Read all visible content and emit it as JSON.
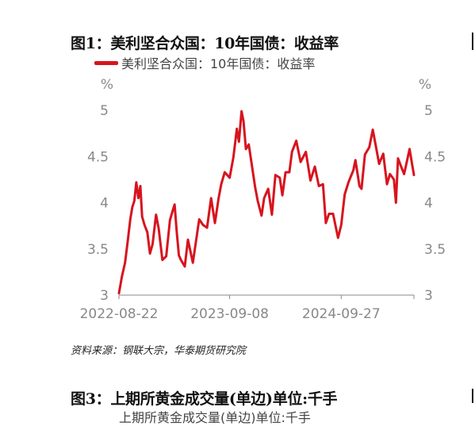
{
  "figure1": {
    "title": "图1：美利坚合众国：10年国债：收益率",
    "source": "资料来源：钢联大宗，华泰期货研究院"
  },
  "figure3": {
    "title": "图3：上期所黄金成交量(单边)单位:千手",
    "partial_legend": "上期所黄金成交量(单边)单位:千手"
  },
  "colors": {
    "series": "#d7141e",
    "axis": "#888888",
    "text": "#111111"
  },
  "chart_data": {
    "type": "line",
    "title": "图1：美利坚合众国：10年国债：收益率",
    "ylabel_left": "%",
    "ylabel_right": "%",
    "ylim": [
      3,
      5
    ],
    "yticks": [
      3,
      3.5,
      4,
      4.5,
      5
    ],
    "ytick_labels": [
      "3",
      "3.5",
      "4",
      "4.5",
      "5"
    ],
    "xlim": [
      "2022-08-22",
      "2025-06-05"
    ],
    "xticks": [
      "2022-08-22",
      "2023-09-08",
      "2024-09-27"
    ],
    "legend": "top-left",
    "grid": false,
    "series": [
      {
        "name": "美利坚合众国：10年国债：收益率",
        "x": [
          "2022-08-22",
          "2022-09-01",
          "2022-09-12",
          "2022-09-22",
          "2022-09-30",
          "2022-10-07",
          "2022-10-14",
          "2022-10-21",
          "2022-10-28",
          "2022-11-04",
          "2022-11-10",
          "2022-11-18",
          "2022-11-28",
          "2022-12-07",
          "2022-12-16",
          "2022-12-28",
          "2023-01-06",
          "2023-01-19",
          "2023-02-01",
          "2023-02-14",
          "2023-02-24",
          "2023-03-02",
          "2023-03-09",
          "2023-03-17",
          "2023-03-24",
          "2023-04-06",
          "2023-04-17",
          "2023-05-04",
          "2023-05-18",
          "2023-05-26",
          "2023-06-08",
          "2023-06-22",
          "2023-07-06",
          "2023-07-19",
          "2023-08-01",
          "2023-08-10",
          "2023-08-22",
          "2023-09-08",
          "2023-09-21",
          "2023-10-03",
          "2023-10-10",
          "2023-10-19",
          "2023-10-26",
          "2023-11-03",
          "2023-11-13",
          "2023-11-24",
          "2023-12-05",
          "2023-12-14",
          "2023-12-27",
          "2024-01-05",
          "2024-01-19",
          "2024-02-01",
          "2024-02-13",
          "2024-02-28",
          "2024-03-08",
          "2024-03-19",
          "2024-04-01",
          "2024-04-10",
          "2024-04-25",
          "2024-05-10",
          "2024-05-28",
          "2024-06-13",
          "2024-06-28",
          "2024-07-12",
          "2024-07-26",
          "2024-08-05",
          "2024-08-16",
          "2024-08-30",
          "2024-09-16",
          "2024-09-27",
          "2024-10-09",
          "2024-10-22",
          "2024-10-31",
          "2024-11-08",
          "2024-11-15",
          "2024-11-29",
          "2024-12-06",
          "2024-12-18",
          "2025-01-02",
          "2025-01-14",
          "2025-01-24",
          "2025-02-05",
          "2025-02-19",
          "2025-03-04",
          "2025-03-14",
          "2025-03-28",
          "2025-04-04",
          "2025-04-11",
          "2025-04-23",
          "2025-05-02",
          "2025-05-21",
          "2025-05-30",
          "2025-06-05"
        ],
        "values": [
          3.02,
          3.2,
          3.35,
          3.6,
          3.82,
          3.95,
          4.02,
          4.22,
          4.05,
          4.18,
          3.85,
          3.76,
          3.68,
          3.45,
          3.55,
          3.87,
          3.72,
          3.38,
          3.42,
          3.81,
          3.92,
          3.98,
          3.7,
          3.43,
          3.38,
          3.31,
          3.6,
          3.35,
          3.65,
          3.82,
          3.76,
          3.73,
          4.05,
          3.78,
          4.05,
          4.2,
          4.33,
          4.27,
          4.49,
          4.8,
          4.66,
          4.99,
          4.88,
          4.58,
          4.63,
          4.4,
          4.17,
          4.02,
          3.86,
          4.05,
          4.15,
          3.87,
          4.3,
          4.27,
          4.08,
          4.33,
          4.33,
          4.55,
          4.67,
          4.44,
          4.55,
          4.24,
          4.39,
          4.18,
          4.2,
          3.78,
          3.88,
          3.88,
          3.62,
          3.76,
          4.09,
          4.22,
          4.29,
          4.35,
          4.46,
          4.18,
          4.15,
          4.52,
          4.6,
          4.79,
          4.62,
          4.42,
          4.53,
          4.2,
          4.31,
          4.25,
          4.0,
          4.48,
          4.38,
          4.31,
          4.58,
          4.41,
          4.3
        ]
      }
    ]
  }
}
